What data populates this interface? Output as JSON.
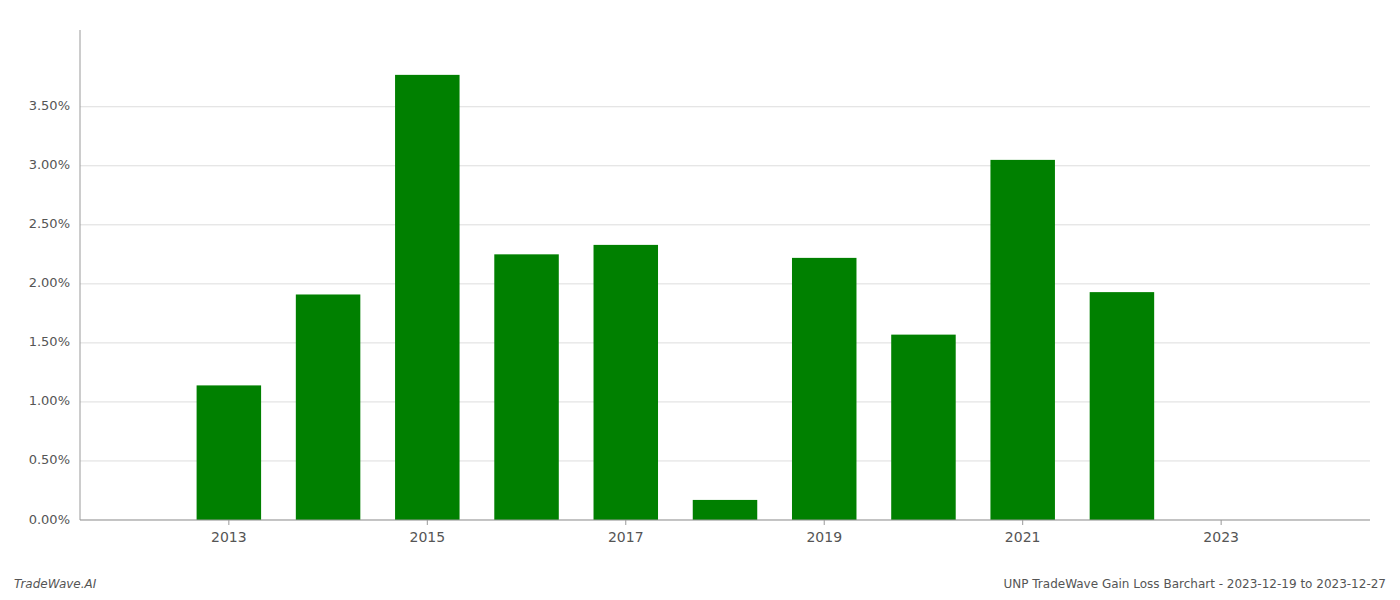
{
  "chart_data": {
    "type": "bar",
    "x": [
      2013,
      2014,
      2015,
      2016,
      2017,
      2018,
      2019,
      2020,
      2021,
      2022
    ],
    "values": [
      0.0114,
      0.0191,
      0.0377,
      0.0225,
      0.0233,
      0.0017,
      0.0222,
      0.0157,
      0.0305,
      0.0193
    ],
    "color": "#008000",
    "xlim": [
      2011.5,
      2024.5
    ],
    "xticks": [
      2013,
      2015,
      2017,
      2019,
      2021,
      2023
    ],
    "ylim": [
      0,
      0.0415
    ],
    "yticks": [
      {
        "value": 0.0,
        "label": "0.00%"
      },
      {
        "value": 0.005,
        "label": "0.50%"
      },
      {
        "value": 0.01,
        "label": "1.00%"
      },
      {
        "value": 0.015,
        "label": "1.50%"
      },
      {
        "value": 0.02,
        "label": "2.00%"
      },
      {
        "value": 0.025,
        "label": "2.50%"
      },
      {
        "value": 0.03,
        "label": "3.00%"
      },
      {
        "value": 0.035,
        "label": "3.50%"
      }
    ],
    "grid": true,
    "annotations": [
      "TradeWave.AI",
      "UNP TradeWave Gain Loss Barchart - 2023-12-19 to 2023-12-27"
    ]
  }
}
